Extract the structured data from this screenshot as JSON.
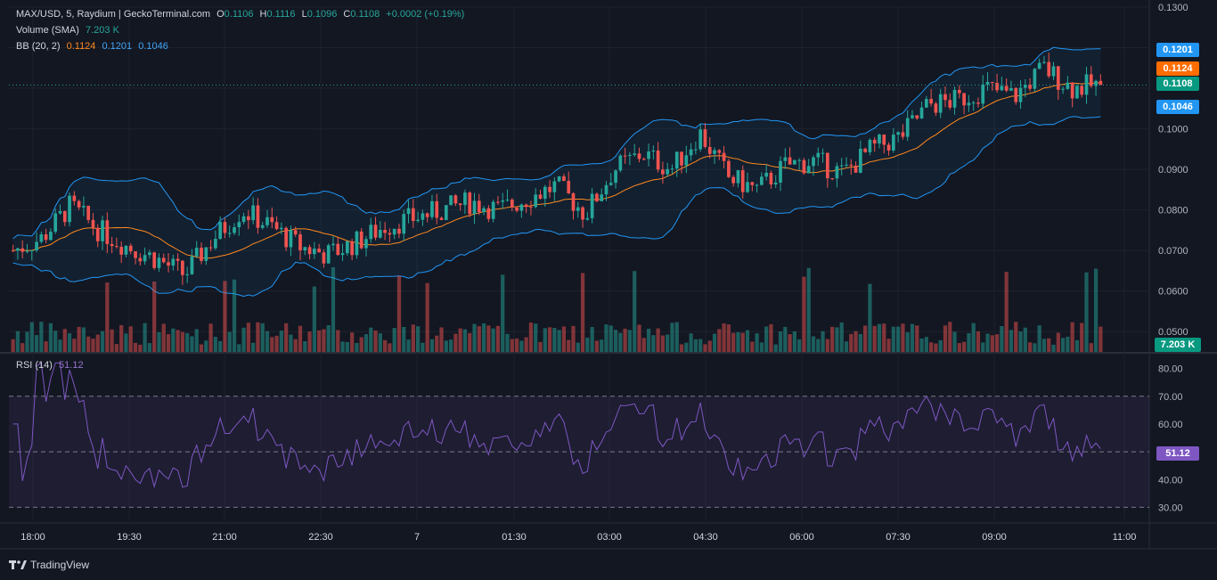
{
  "header": {
    "symbol_line": "MAX/USD, 5, Raydium | GeckoTerminal.com",
    "o_label": "O",
    "o_value": "0.1106",
    "h_label": "H",
    "h_value": "0.1116",
    "l_label": "L",
    "l_value": "0.1096",
    "c_label": "C",
    "c_value": "0.1108",
    "change": "+0.0002 (+0.19%)",
    "volume_label": "Volume (SMA)",
    "volume_value": "7.203 K",
    "bb_label": "BB (20, 2)",
    "bb_mid": "0.1124",
    "bb_upper": "0.1201",
    "bb_lower": "0.1046"
  },
  "rsi": {
    "label": "RSI (14)",
    "value": "51.12"
  },
  "price_axis": [
    "0.1300",
    "0.1000",
    "0.0900",
    "0.0800",
    "0.0700",
    "0.0600",
    "0.0500"
  ],
  "rsi_axis": [
    "80.00",
    "70.00",
    "60.00",
    "40.00",
    "30.00"
  ],
  "time_axis": [
    "18:00",
    "19:30",
    "21:00",
    "22:30",
    "7",
    "01:30",
    "03:00",
    "04:30",
    "06:00",
    "07:30",
    "09:00",
    "11:00"
  ],
  "tags": {
    "upper": "0.1201",
    "mid": "0.1124",
    "last": "0.1108",
    "lower": "0.1046",
    "volume": "7.203 K",
    "rsi": "51.12"
  },
  "footer": {
    "brand": "TradingView"
  },
  "colors": {
    "up": "#26a69a",
    "down": "#ef5350",
    "bb_mid": "#ff8a1f",
    "bb_band": "#2196f3",
    "rsi": "#7e57c2",
    "background": "#131722"
  },
  "chart_data": {
    "type": "candlestick",
    "interval": "5",
    "price_range": [
      0.045,
      0.13
    ],
    "rsi_range": [
      25,
      85
    ],
    "rsi_levels": [
      70,
      50,
      30
    ],
    "close_keypoints": [
      0.07,
      0.073,
      0.081,
      0.075,
      0.071,
      0.068,
      0.064,
      0.073,
      0.08,
      0.076,
      0.071,
      0.069,
      0.072,
      0.076,
      0.078,
      0.08,
      0.082,
      0.08,
      0.083,
      0.086,
      0.079,
      0.09,
      0.094,
      0.09,
      0.099,
      0.088,
      0.085,
      0.091,
      0.092,
      0.089,
      0.095,
      0.098,
      0.106,
      0.107,
      0.11,
      0.108,
      0.115,
      0.11,
      0.111
    ]
  }
}
